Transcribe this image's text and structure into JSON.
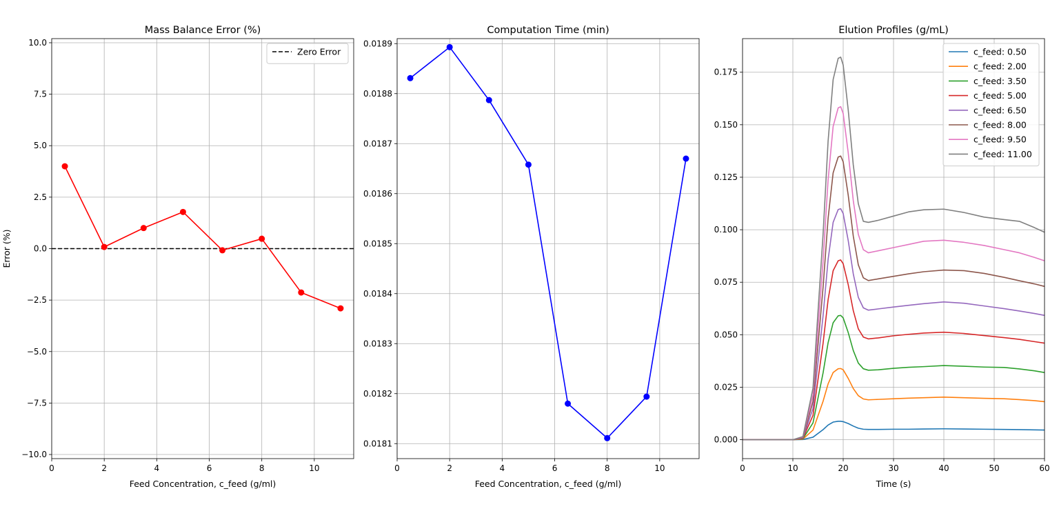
{
  "chart_data": [
    {
      "type": "line",
      "title": "Mass Balance Error (%)",
      "xlabel": "Feed Concentration, c_feed (g/ml)",
      "ylabel": "Error (%)",
      "xlim": [
        0,
        11.5
      ],
      "ylim": [
        -10.2,
        10.2
      ],
      "xticks": [
        0,
        2,
        4,
        6,
        8,
        10
      ],
      "xtick_labels": [
        "0",
        "2",
        "4",
        "6",
        "8",
        "10"
      ],
      "yticks": [
        -10,
        -7.5,
        -5,
        -2.5,
        0,
        2.5,
        5,
        7.5,
        10
      ],
      "ytick_labels": [
        "−10.0",
        "−7.5",
        "−5.0",
        "−2.5",
        "0.0",
        "2.5",
        "5.0",
        "7.5",
        "10.0"
      ],
      "grid": true,
      "legend_position": "top-right",
      "series": [
        {
          "x": [
            0.5,
            2,
            3.5,
            5,
            6.5,
            8,
            9.5,
            11
          ],
          "values": [
            4.0,
            0.08,
            1.0,
            1.78,
            -0.08,
            0.48,
            -2.13,
            -2.9
          ],
          "color": "#ff0000",
          "marker": "circle"
        }
      ],
      "reference_lines": [
        {
          "name": "Zero Error",
          "y": 0,
          "color": "#000000",
          "style": "dashed"
        }
      ]
    },
    {
      "type": "line",
      "title": "Computation Time (min)",
      "xlabel": "Feed Concentration, c_feed (g/ml)",
      "ylabel": "",
      "xlim": [
        0,
        11.5
      ],
      "ylim": [
        0.01807,
        0.01891
      ],
      "xticks": [
        0,
        2,
        4,
        6,
        8,
        10
      ],
      "xtick_labels": [
        "0",
        "2",
        "4",
        "6",
        "8",
        "10"
      ],
      "yticks": [
        0.0181,
        0.0182,
        0.0183,
        0.0184,
        0.0185,
        0.0186,
        0.0187,
        0.0188,
        0.0189
      ],
      "ytick_labels": [
        "0.0181",
        "0.0182",
        "0.0183",
        "0.0184",
        "0.0185",
        "0.0186",
        "0.0187",
        "0.0188",
        "0.0189"
      ],
      "grid": true,
      "series": [
        {
          "x": [
            0.5,
            2,
            3.5,
            5,
            6.5,
            8,
            9.5,
            11
          ],
          "values": [
            0.018831,
            0.018893,
            0.018787,
            0.018658,
            0.01818,
            0.018111,
            0.018194,
            0.01867
          ],
          "color": "#0000ff",
          "marker": "circle"
        }
      ]
    },
    {
      "type": "line",
      "title": "Elution Profiles (g/mL)",
      "xlabel": "Time (s)",
      "ylabel": "",
      "xlim": [
        0,
        60
      ],
      "ylim": [
        -0.009,
        0.191
      ],
      "xticks": [
        0,
        10,
        20,
        30,
        40,
        50,
        60
      ],
      "xtick_labels": [
        "0",
        "10",
        "20",
        "30",
        "40",
        "50",
        "60"
      ],
      "yticks": [
        0,
        0.025,
        0.05,
        0.075,
        0.1,
        0.125,
        0.15,
        0.175
      ],
      "ytick_labels": [
        "0.000",
        "0.025",
        "0.050",
        "0.075",
        "0.100",
        "0.125",
        "0.150",
        "0.175"
      ],
      "grid": true,
      "legend_position": "top-right",
      "x": [
        0,
        10,
        12,
        14,
        16,
        17,
        18,
        19,
        19.5,
        20,
        21,
        22,
        23,
        24,
        25,
        27,
        30,
        33,
        36,
        40,
        44,
        48,
        52,
        55,
        58,
        60
      ],
      "series": [
        {
          "name": "c_feed: 0.50",
          "color": "#1f77b4",
          "values": [
            0,
            0,
            0.0001,
            0.0012,
            0.0048,
            0.007,
            0.0084,
            0.0088,
            0.0088,
            0.0086,
            0.0077,
            0.0065,
            0.0055,
            0.005,
            0.0049,
            0.0049,
            0.005,
            0.005,
            0.0051,
            0.0052,
            0.0051,
            0.005,
            0.0049,
            0.0048,
            0.0047,
            0.0046
          ]
        },
        {
          "name": "c_feed: 2.00",
          "color": "#ff7f0e",
          "values": [
            0,
            0,
            0.0003,
            0.0046,
            0.0183,
            0.0266,
            0.032,
            0.0338,
            0.0339,
            0.0333,
            0.0292,
            0.0244,
            0.021,
            0.0194,
            0.019,
            0.0192,
            0.0195,
            0.0198,
            0.02,
            0.0203,
            0.02,
            0.0197,
            0.0195,
            0.0191,
            0.0186,
            0.0181
          ]
        },
        {
          "name": "c_feed: 3.50",
          "color": "#2ca02c",
          "values": [
            0,
            0,
            0.0005,
            0.008,
            0.0318,
            0.0462,
            0.0557,
            0.059,
            0.0592,
            0.058,
            0.051,
            0.0425,
            0.0365,
            0.0338,
            0.0331,
            0.0333,
            0.034,
            0.0345,
            0.0348,
            0.0353,
            0.035,
            0.0346,
            0.0344,
            0.0337,
            0.0328,
            0.032
          ]
        },
        {
          "name": "c_feed: 5.00",
          "color": "#d62728",
          "values": [
            0,
            0,
            0.0007,
            0.0116,
            0.0459,
            0.0667,
            0.0805,
            0.0852,
            0.0856,
            0.0838,
            0.0738,
            0.0615,
            0.0528,
            0.0489,
            0.048,
            0.0485,
            0.0495,
            0.0502,
            0.0508,
            0.0512,
            0.0506,
            0.0496,
            0.0486,
            0.0478,
            0.0467,
            0.046
          ]
        },
        {
          "name": "c_feed: 6.50",
          "color": "#9467bd",
          "values": [
            0,
            0,
            0.0009,
            0.0149,
            0.059,
            0.0858,
            0.1035,
            0.1096,
            0.11,
            0.1077,
            0.0948,
            0.079,
            0.0678,
            0.0628,
            0.0617,
            0.0623,
            0.0632,
            0.064,
            0.0648,
            0.0656,
            0.065,
            0.0637,
            0.0624,
            0.0613,
            0.0601,
            0.0592
          ]
        },
        {
          "name": "c_feed: 8.00",
          "color": "#8c564b",
          "values": [
            0,
            0,
            0.0011,
            0.0182,
            0.0725,
            0.1054,
            0.1271,
            0.1346,
            0.1351,
            0.1323,
            0.1164,
            0.097,
            0.0833,
            0.0771,
            0.0758,
            0.0766,
            0.0778,
            0.079,
            0.08,
            0.0808,
            0.0805,
            0.0792,
            0.0773,
            0.0757,
            0.0742,
            0.073
          ]
        },
        {
          "name": "c_feed: 9.50",
          "color": "#e377c2",
          "values": [
            0,
            0,
            0.0013,
            0.0214,
            0.0851,
            0.1237,
            0.1492,
            0.158,
            0.1586,
            0.1553,
            0.1366,
            0.1139,
            0.0978,
            0.0905,
            0.089,
            0.09,
            0.0915,
            0.093,
            0.0945,
            0.095,
            0.094,
            0.0925,
            0.0905,
            0.089,
            0.0868,
            0.0852
          ]
        },
        {
          "name": "c_feed: 11.00",
          "color": "#7f7f7f",
          "values": [
            0,
            0,
            0.0015,
            0.0246,
            0.0978,
            0.1422,
            0.1715,
            0.1816,
            0.1822,
            0.1784,
            0.157,
            0.1309,
            0.1124,
            0.104,
            0.1035,
            0.1045,
            0.1065,
            0.1085,
            0.1095,
            0.1098,
            0.1082,
            0.106,
            0.1048,
            0.104,
            0.101,
            0.0988
          ]
        }
      ]
    }
  ]
}
